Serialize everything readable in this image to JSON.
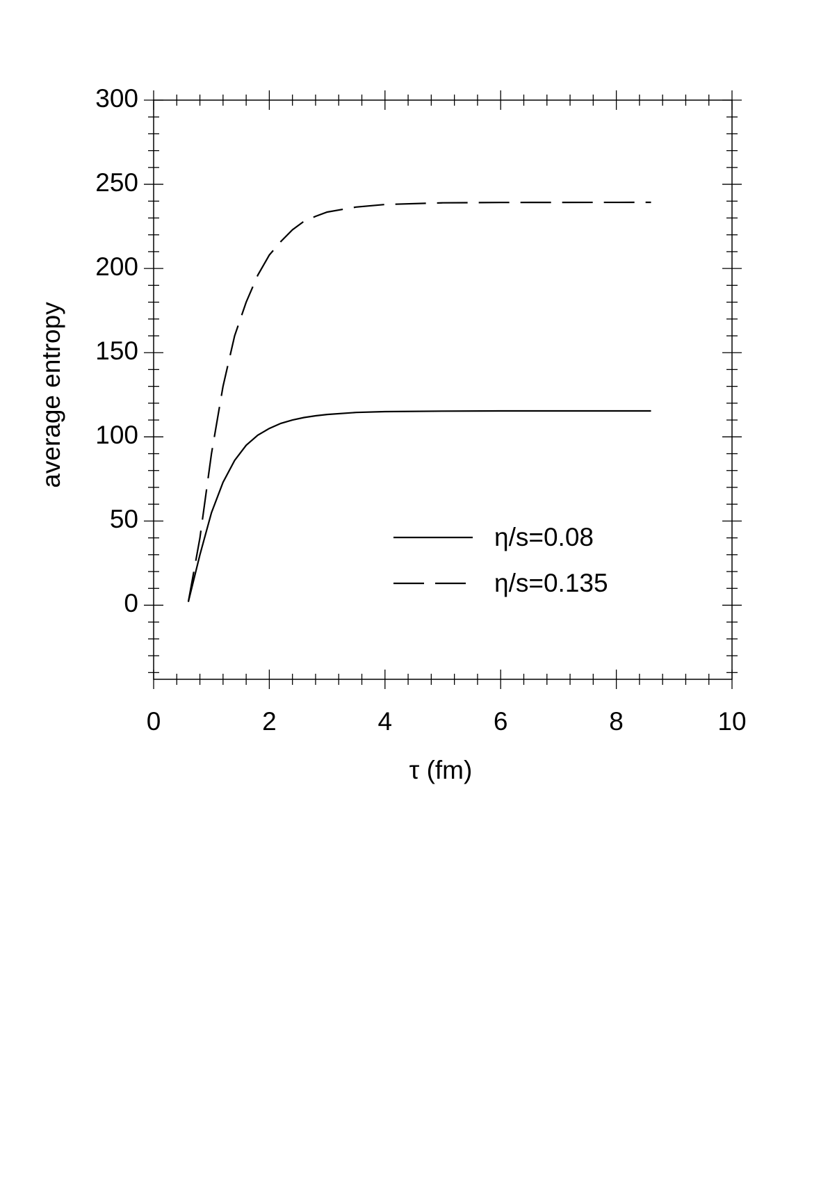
{
  "chart_data": {
    "type": "line",
    "xlabel": "τ (fm)",
    "ylabel": "average entropy",
    "xlim": [
      0,
      10
    ],
    "ylim": [
      -44,
      300
    ],
    "xticks": [
      0,
      2,
      4,
      6,
      8,
      10
    ],
    "yticks": [
      0,
      50,
      100,
      150,
      200,
      250,
      300
    ],
    "legend": "lower-right",
    "series": [
      {
        "name": "η/s=0.08",
        "color": "#000000",
        "dash": "solid",
        "x": [
          0.6,
          0.8,
          1.0,
          1.2,
          1.4,
          1.6,
          1.8,
          2.0,
          2.2,
          2.4,
          2.6,
          2.8,
          3.0,
          3.5,
          4.0,
          5.0,
          6.0,
          7.0,
          8.6
        ],
        "values": [
          2,
          30,
          55,
          73,
          86,
          95,
          101,
          105,
          108,
          110,
          111.5,
          112.5,
          113.3,
          114.5,
          115,
          115.3,
          115.4,
          115.4,
          115.4
        ]
      },
      {
        "name": "η/s=0.135",
        "color": "#000000",
        "dash": "dashed",
        "x": [
          0.6,
          0.8,
          1.0,
          1.2,
          1.4,
          1.6,
          1.8,
          2.0,
          2.2,
          2.4,
          2.6,
          2.8,
          3.0,
          3.5,
          4.0,
          5.0,
          6.0,
          8.6
        ],
        "values": [
          2,
          40,
          90,
          130,
          160,
          180,
          196,
          208,
          216,
          223,
          228,
          231,
          233.5,
          236.5,
          238,
          239,
          239.2,
          239.3
        ]
      }
    ]
  }
}
